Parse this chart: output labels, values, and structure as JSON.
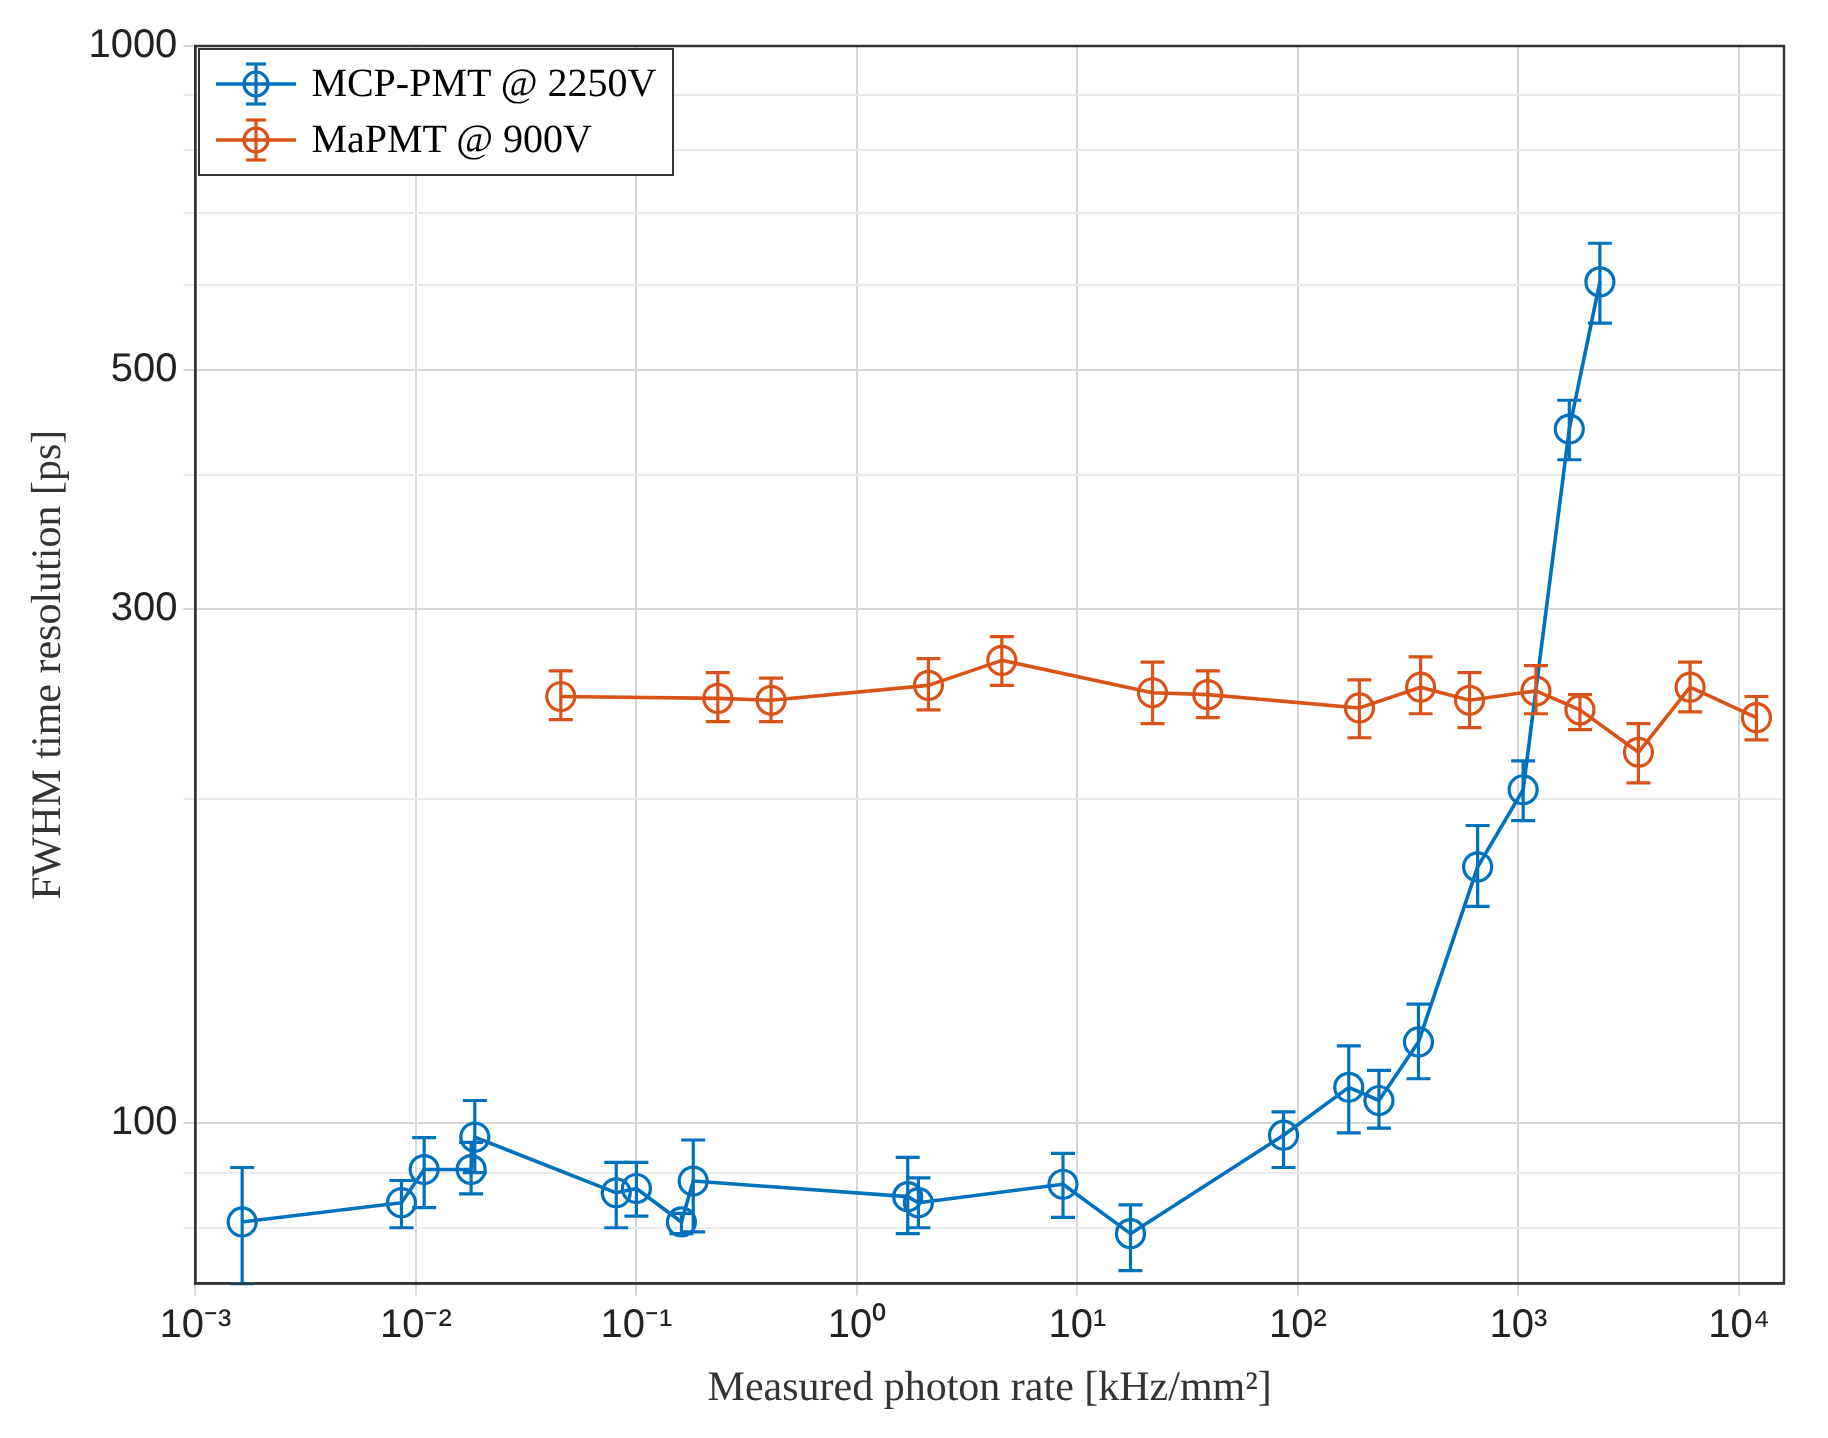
{
  "chart_data": {
    "type": "line",
    "xlabel": "Measured photon rate [kHz/mm²]",
    "ylabel": "FWHM time resolution [ps]",
    "series": [
      {
        "name": "MCP-PMT @ 2250V",
        "color": "#0072bd",
        "x": [
          0.00163,
          0.0086,
          0.0109,
          0.0178,
          0.0185,
          0.081,
          0.1,
          0.16,
          0.181,
          1.7,
          1.9,
          8.6,
          17.4,
          86,
          170,
          233,
          352,
          653,
          1050,
          1700,
          2340
        ],
        "values": [
          81,
          84.4,
          90.6,
          90.6,
          97.1,
          86.2,
          87,
          81,
          88.4,
          85.5,
          84.4,
          87.8,
          79,
          97.5,
          108,
          105,
          119,
          173,
          204,
          441,
          604
        ],
        "errors": [
          [
            71,
            91
          ],
          [
            80,
            88.5
          ],
          [
            83.5,
            97
          ],
          [
            86,
            96
          ],
          [
            90,
            105
          ],
          [
            80,
            92
          ],
          [
            82,
            92
          ],
          [
            79,
            82.5
          ],
          [
            79.3,
            96.5
          ],
          [
            79,
            93
          ],
          [
            80,
            89
          ],
          [
            81.8,
            93.8
          ],
          [
            73,
            84
          ],
          [
            91,
            102.5
          ],
          [
            98,
            118
          ],
          [
            99,
            112
          ],
          [
            110,
            129
          ],
          [
            159,
            189
          ],
          [
            191,
            217
          ],
          [
            413,
            469
          ],
          [
            553,
            656
          ]
        ]
      },
      {
        "name": "MaPMT @ 900V",
        "color": "#d95319",
        "x": [
          0.0454,
          0.234,
          0.408,
          2.11,
          4.54,
          21.9,
          39,
          190,
          360,
          600,
          1200,
          1900,
          3500,
          6000,
          12000
        ],
        "values": [
          249,
          248,
          247,
          255,
          269,
          251,
          250,
          243,
          254,
          247,
          252,
          242,
          221,
          254,
          238
        ],
        "errors": [
          [
            237,
            263
          ],
          [
            236,
            262
          ],
          [
            236,
            259
          ],
          [
            242,
            270
          ],
          [
            255,
            283
          ],
          [
            235,
            268
          ],
          [
            238,
            263
          ],
          [
            228,
            258
          ],
          [
            240,
            271
          ],
          [
            233,
            262
          ],
          [
            240,
            266
          ],
          [
            232,
            250
          ],
          [
            207,
            235
          ],
          [
            241,
            268
          ],
          [
            227,
            249
          ]
        ]
      }
    ],
    "log": "xy",
    "xlim": [
      0.001,
      16000
    ],
    "ylim": [
      71,
      1000
    ],
    "xticks": [
      {
        "value": 0.001,
        "label": "10⁻³"
      },
      {
        "value": 0.01,
        "label": "10⁻²"
      },
      {
        "value": 0.1,
        "label": "10⁻¹"
      },
      {
        "value": 1,
        "label": "10⁰"
      },
      {
        "value": 10,
        "label": "10¹"
      },
      {
        "value": 100,
        "label": "10²"
      },
      {
        "value": 1000,
        "label": "10³"
      },
      {
        "value": 10000,
        "label": "10⁴"
      }
    ],
    "yticks": [
      {
        "value": 80,
        "label": null
      },
      {
        "value": 90,
        "label": null
      },
      100,
      {
        "value": 200,
        "label": null
      },
      300,
      {
        "value": 400,
        "label": null
      },
      500,
      {
        "value": 600,
        "label": null
      },
      {
        "value": 700,
        "label": null
      },
      {
        "value": 800,
        "label": null
      },
      {
        "value": 900,
        "label": null
      },
      1000
    ],
    "grid": true,
    "legend": "top left",
    "marker": "circle",
    "line_style": "solid"
  }
}
